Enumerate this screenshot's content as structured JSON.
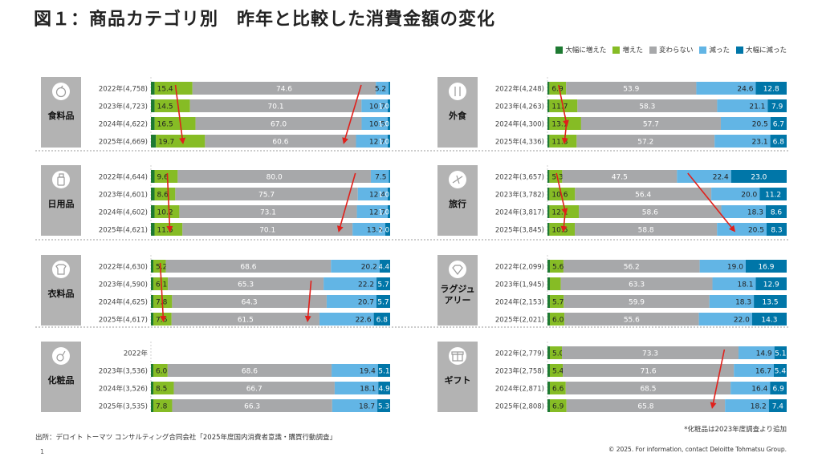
{
  "title": "図１：商品カテゴリ別　昨年と比較した消費金額の変化",
  "legend": [
    {
      "label": "大幅に増えた",
      "color": "#1e7a32"
    },
    {
      "label": "増えた",
      "color": "#86bc25"
    },
    {
      "label": "変わらない",
      "color": "#a7a8aa"
    },
    {
      "label": "減った",
      "color": "#62b5e5"
    },
    {
      "label": "大幅に減った",
      "color": "#0076a8"
    }
  ],
  "source": "出所：デロイト トーマツ コンサルティング合同会社「2025年度国内消費者意識・購買行動調査」",
  "page_number": "1",
  "note": "*化粧品は2023年度調査より追加",
  "copyright": "© 2025. For information, contact Deloitte Tohmatsu Group.",
  "chart_data": {
    "type": "bar",
    "orientation": "horizontal",
    "stacked": true,
    "unit": "%",
    "series_names": [
      "大幅に増えた",
      "増えた",
      "変わらない",
      "減った",
      "大幅に減った"
    ],
    "panels": [
      {
        "category": "食料品",
        "icon": "apple-icon",
        "rows": [
          {
            "label": "2022年(4,758)",
            "values": [
              1.5,
              15.4,
              74.6,
              5.2,
              0.6
            ]
          },
          {
            "label": "2023年(4,723)",
            "values": [
              1.5,
              14.5,
              70.1,
              10.7,
              1.0
            ]
          },
          {
            "label": "2024年(4,622)",
            "values": [
              1.5,
              16.5,
              67.0,
              10.5,
              1.0
            ]
          },
          {
            "label": "2025年(4,669)",
            "values": [
              2.0,
              19.7,
              60.6,
              12.7,
              1.0
            ]
          }
        ]
      },
      {
        "category": "外食",
        "icon": "utensils-icon",
        "rows": [
          {
            "label": "2022年(4,248)",
            "values": [
              0.8,
              6.9,
              53.9,
              24.6,
              12.8
            ]
          },
          {
            "label": "2023年(4,263)",
            "values": [
              0.8,
              11.7,
              58.3,
              21.1,
              7.9
            ]
          },
          {
            "label": "2024年(4,300)",
            "values": [
              0.8,
              13.1,
              57.7,
              20.5,
              6.7
            ]
          },
          {
            "label": "2025年(4,336)",
            "values": [
              0.8,
              11.3,
              57.2,
              23.1,
              6.8
            ]
          }
        ]
      },
      {
        "category": "日用品",
        "icon": "spray-bottle-icon",
        "rows": [
          {
            "label": "2022年(4,644)",
            "values": [
              1.5,
              9.6,
              80.0,
              7.5,
              0.5
            ]
          },
          {
            "label": "2023年(4,601)",
            "values": [
              1.5,
              8.6,
              75.7,
              12.4,
              1.0
            ]
          },
          {
            "label": "2024年(4,602)",
            "values": [
              1.5,
              10.2,
              73.1,
              12.7,
              1.0
            ]
          },
          {
            "label": "2025年(4,621)",
            "values": [
              1.5,
              11.5,
              70.1,
              13.5,
              2.0
            ]
          }
        ]
      },
      {
        "category": "旅行",
        "icon": "airplane-icon",
        "rows": [
          {
            "label": "2022年(3,657)",
            "values": [
              0.8,
              5.3,
              47.5,
              22.4,
              23.0
            ]
          },
          {
            "label": "2023年(3,782)",
            "values": [
              0.8,
              10.6,
              56.4,
              20.0,
              11.2
            ]
          },
          {
            "label": "2024年(3,817)",
            "values": [
              0.8,
              12.1,
              58.6,
              18.3,
              8.6
            ]
          },
          {
            "label": "2025年(3,845)",
            "values": [
              0.8,
              10.5,
              58.8,
              20.5,
              8.3
            ]
          }
        ]
      },
      {
        "category": "衣料品",
        "icon": "tshirt-icon",
        "rows": [
          {
            "label": "2022年(4,630)",
            "values": [
              1.0,
              5.2,
              68.6,
              20.2,
              4.4
            ]
          },
          {
            "label": "2023年(4,590)",
            "values": [
              1.0,
              6.1,
              65.3,
              22.2,
              5.7
            ]
          },
          {
            "label": "2024年(4,625)",
            "values": [
              1.0,
              7.8,
              64.3,
              20.7,
              5.7
            ]
          },
          {
            "label": "2025年(4,617)",
            "values": [
              1.0,
              7.6,
              61.5,
              22.6,
              6.8
            ]
          }
        ]
      },
      {
        "category": "ラグジュアリー",
        "category_lines": [
          "ラグジュ",
          "アリー"
        ],
        "icon": "diamond-icon",
        "rows": [
          {
            "label": "2022年(2,099)",
            "values": [
              1.0,
              5.6,
              56.2,
              19.0,
              16.9
            ]
          },
          {
            "label": "2023年(1,945)",
            "values": [
              1.0,
              4.6,
              63.3,
              18.1,
              12.9
            ]
          },
          {
            "label": "2024年(2,153)",
            "values": [
              1.0,
              5.7,
              59.9,
              18.3,
              13.5
            ]
          },
          {
            "label": "2025年(2,021)",
            "values": [
              1.0,
              6.0,
              55.6,
              22.0,
              14.3
            ]
          }
        ]
      },
      {
        "category": "化粧品",
        "icon": "cosmetics-icon",
        "rows": [
          {
            "label": "2022年",
            "values": null
          },
          {
            "label": "2023年(3,536)",
            "values": [
              1.0,
              6.0,
              68.6,
              19.4,
              5.1
            ]
          },
          {
            "label": "2024年(3,526)",
            "values": [
              1.0,
              8.5,
              66.7,
              18.1,
              4.9
            ]
          },
          {
            "label": "2025年(3,535)",
            "values": [
              1.0,
              7.8,
              66.3,
              18.7,
              5.3
            ]
          }
        ]
      },
      {
        "category": "ギフト",
        "icon": "gift-icon",
        "rows": [
          {
            "label": "2022年(2,779)",
            "values": [
              1.0,
              5.0,
              73.3,
              14.9,
              5.1
            ]
          },
          {
            "label": "2023年(2,758)",
            "values": [
              1.0,
              5.4,
              71.6,
              16.7,
              5.4
            ]
          },
          {
            "label": "2024年(2,871)",
            "values": [
              1.0,
              6.6,
              68.5,
              16.4,
              6.9
            ]
          },
          {
            "label": "2025年(2,808)",
            "values": [
              1.0,
              6.9,
              65.8,
              18.2,
              7.4
            ]
          }
        ]
      }
    ],
    "trend_arrows": [
      {
        "panel": 0,
        "series": 1,
        "from_row": 0,
        "to_row": 3
      },
      {
        "panel": 0,
        "series": 2,
        "from_row": 0,
        "to_row": 3
      },
      {
        "panel": 1,
        "series": 1,
        "from_row": 0,
        "to_row": 2
      },
      {
        "panel": 1,
        "series": 1,
        "from_row": 2,
        "to_row": 3
      },
      {
        "panel": 2,
        "series": 1,
        "from_row": 0,
        "to_row": 3
      },
      {
        "panel": 2,
        "series": 2,
        "from_row": 0,
        "to_row": 3
      },
      {
        "panel": 3,
        "series": 1,
        "from_row": 0,
        "to_row": 2
      },
      {
        "panel": 3,
        "series": 1,
        "from_row": 2,
        "to_row": 3
      },
      {
        "panel": 3,
        "series": 3,
        "from_row": 0,
        "to_row": 3
      },
      {
        "panel": 4,
        "series": 1,
        "from_row": 0,
        "to_row": 3
      },
      {
        "panel": 4,
        "series": 2,
        "from_row": 1,
        "to_row": 3
      },
      {
        "panel": 7,
        "series": 2,
        "from_row": 0,
        "to_row": 3
      }
    ]
  }
}
